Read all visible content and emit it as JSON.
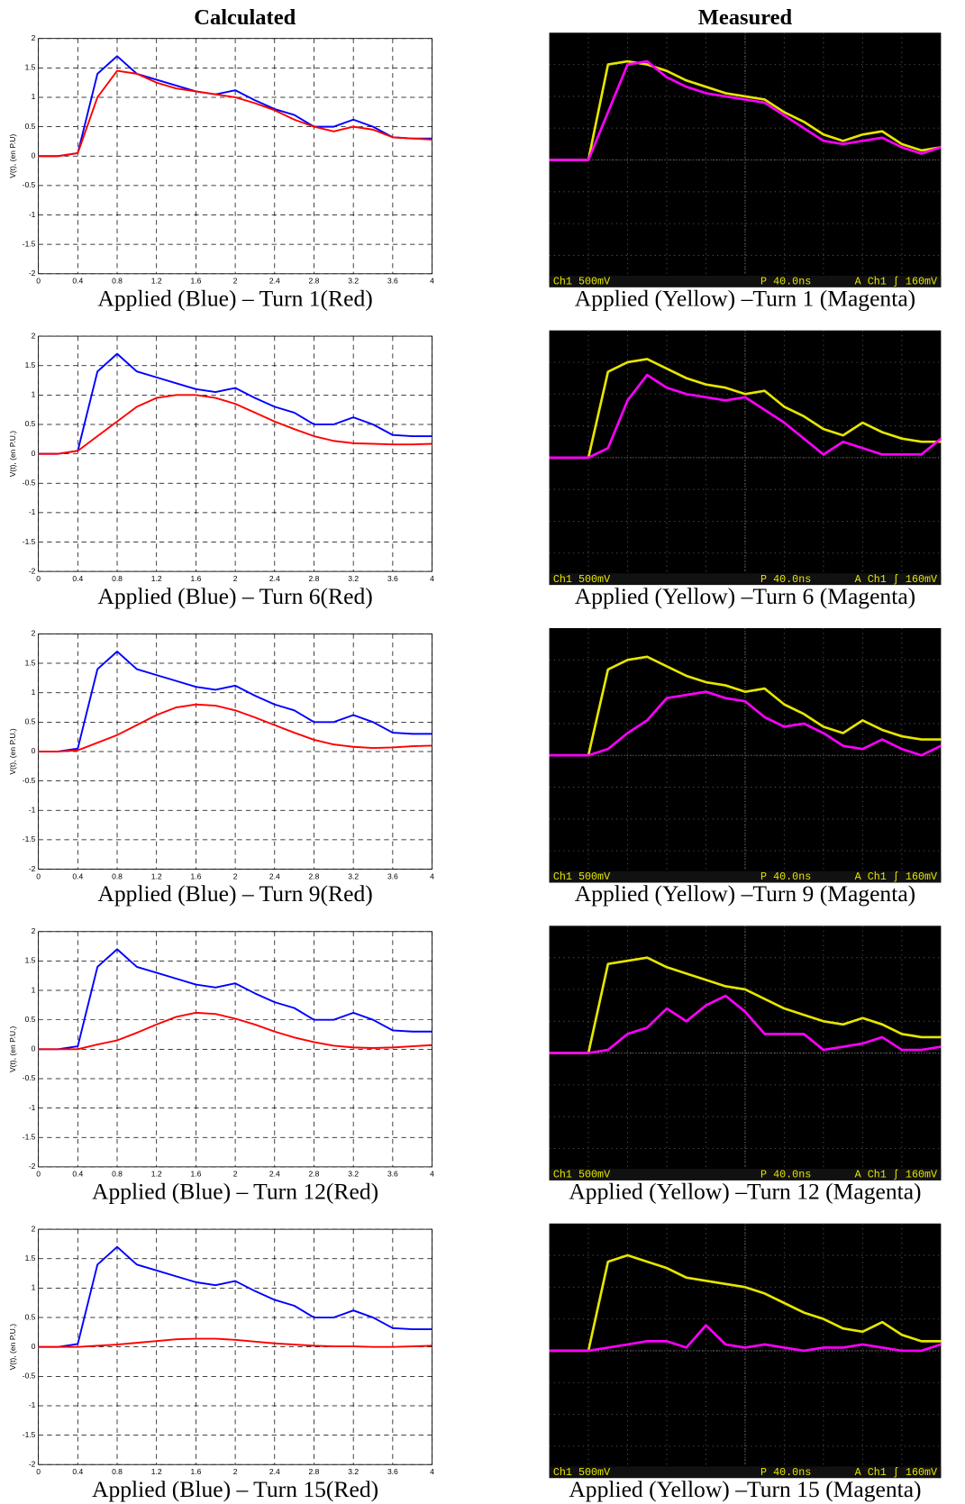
{
  "columns": {
    "calculated": "Calculated",
    "measured": "Measured"
  },
  "chart_data": [
    {
      "type": "line",
      "caption": "Applied (Blue) – Turn 1(Red)",
      "ylabel": "V(t), (en P.U)",
      "grid": true,
      "x": [
        0,
        0.2,
        0.4,
        0.6,
        0.8,
        1,
        1.2,
        1.4,
        1.6,
        1.8,
        2,
        2.2,
        2.4,
        2.6,
        2.8,
        3,
        3.2,
        3.4,
        3.6,
        3.8,
        4
      ],
      "series": [
        {
          "color": "#0000ff",
          "values": [
            0,
            0,
            0.05,
            1.4,
            1.7,
            1.4,
            1.3,
            1.2,
            1.1,
            1.05,
            1.12,
            0.95,
            0.8,
            0.7,
            0.5,
            0.5,
            0.62,
            0.5,
            0.32,
            0.3,
            0.3
          ]
        },
        {
          "color": "#ff0000",
          "values": [
            0,
            0,
            0.05,
            1.0,
            1.45,
            1.4,
            1.25,
            1.15,
            1.1,
            1.05,
            1.0,
            0.9,
            0.78,
            0.62,
            0.5,
            0.42,
            0.5,
            0.45,
            0.32,
            0.3,
            0.28
          ]
        }
      ],
      "xlim": [
        0,
        4
      ],
      "ylim": [
        -2,
        2
      ],
      "xticks": [
        0,
        0.4,
        0.8,
        1.2,
        1.6,
        2,
        2.4,
        2.8,
        3.2,
        3.6,
        4
      ],
      "yticks": [
        -2,
        -1.5,
        -1,
        -0.5,
        0,
        0.5,
        1,
        1.5,
        2
      ]
    },
    {
      "type": "line",
      "caption": "Applied (Yellow) –Turn 1 (Magenta)",
      "background": "#000000",
      "grid": true,
      "scale_readout": "Ch1  500mV",
      "time_readout": "P 40.0ns",
      "trigger_readout": "A  Ch1  ʃ  160mV",
      "x": [
        0,
        0.5,
        1,
        1.5,
        2,
        2.5,
        3,
        3.5,
        4,
        4.5,
        5,
        5.5,
        6,
        6.5,
        7,
        7.5,
        8,
        8.5,
        9,
        9.5,
        10
      ],
      "series": [
        {
          "color": "#e6e600",
          "values": [
            0,
            0,
            0,
            3.0,
            3.1,
            3.0,
            2.8,
            2.5,
            2.3,
            2.1,
            2.0,
            1.9,
            1.5,
            1.2,
            0.8,
            0.6,
            0.8,
            0.9,
            0.5,
            0.3,
            0.4
          ]
        },
        {
          "color": "#ff00ff",
          "values": [
            0,
            0,
            0,
            1.5,
            3.0,
            3.1,
            2.6,
            2.3,
            2.1,
            2.0,
            1.9,
            1.8,
            1.4,
            1.0,
            0.6,
            0.5,
            0.6,
            0.7,
            0.4,
            0.2,
            0.4
          ]
        }
      ],
      "xlim": [
        0,
        10
      ],
      "ylim": [
        -4,
        4
      ]
    },
    {
      "type": "line",
      "caption": "Applied (Blue) – Turn 6(Red)",
      "ylabel": "V(t), (en P.U.)",
      "grid": true,
      "x": [
        0,
        0.2,
        0.4,
        0.6,
        0.8,
        1,
        1.2,
        1.4,
        1.6,
        1.8,
        2,
        2.2,
        2.4,
        2.6,
        2.8,
        3,
        3.2,
        3.4,
        3.6,
        3.8,
        4
      ],
      "series": [
        {
          "color": "#0000ff",
          "values": [
            0,
            0,
            0.05,
            1.4,
            1.7,
            1.4,
            1.3,
            1.2,
            1.1,
            1.05,
            1.12,
            0.95,
            0.8,
            0.7,
            0.5,
            0.5,
            0.62,
            0.5,
            0.32,
            0.3,
            0.3
          ]
        },
        {
          "color": "#ff0000",
          "values": [
            0,
            0,
            0.05,
            0.3,
            0.55,
            0.8,
            0.95,
            1.0,
            1.0,
            0.95,
            0.85,
            0.7,
            0.55,
            0.42,
            0.3,
            0.22,
            0.18,
            0.17,
            0.16,
            0.16,
            0.17
          ]
        }
      ],
      "xlim": [
        0,
        4
      ],
      "ylim": [
        -2,
        2
      ],
      "xticks": [
        0,
        0.4,
        0.8,
        1.2,
        1.6,
        2,
        2.4,
        2.8,
        3.2,
        3.6,
        4
      ],
      "yticks": [
        -2,
        -1.5,
        -1,
        -0.5,
        0,
        0.5,
        1,
        1.5,
        2
      ]
    },
    {
      "type": "line",
      "caption": "Applied (Yellow) –Turn 6 (Magenta)",
      "background": "#000000",
      "grid": true,
      "scale_readout": "Ch1  500mV",
      "time_readout": "P 40.0ns",
      "trigger_readout": "A  Ch1  ʃ  160mV",
      "x": [
        0,
        0.5,
        1,
        1.5,
        2,
        2.5,
        3,
        3.5,
        4,
        4.5,
        5,
        5.5,
        6,
        6.5,
        7,
        7.5,
        8,
        8.5,
        9,
        9.5,
        10
      ],
      "series": [
        {
          "color": "#e6e600",
          "values": [
            0,
            0,
            0,
            2.7,
            3.0,
            3.1,
            2.8,
            2.5,
            2.3,
            2.2,
            2.0,
            2.1,
            1.6,
            1.3,
            0.9,
            0.7,
            1.1,
            0.8,
            0.6,
            0.5,
            0.5
          ]
        },
        {
          "color": "#ff00ff",
          "values": [
            0,
            0,
            0,
            0.3,
            1.8,
            2.6,
            2.2,
            2.0,
            1.9,
            1.8,
            1.9,
            1.5,
            1.1,
            0.6,
            0.1,
            0.5,
            0.3,
            0.1,
            0.1,
            0.1,
            0.6
          ]
        }
      ],
      "xlim": [
        0,
        10
      ],
      "ylim": [
        -4,
        4
      ]
    },
    {
      "type": "line",
      "caption": "Applied (Blue) – Turn 9(Red)",
      "ylabel": "V(t), (en P.U.)",
      "grid": true,
      "x": [
        0,
        0.2,
        0.4,
        0.6,
        0.8,
        1,
        1.2,
        1.4,
        1.6,
        1.8,
        2,
        2.2,
        2.4,
        2.6,
        2.8,
        3,
        3.2,
        3.4,
        3.6,
        3.8,
        4
      ],
      "series": [
        {
          "color": "#0000ff",
          "values": [
            0,
            0,
            0.05,
            1.4,
            1.7,
            1.4,
            1.3,
            1.2,
            1.1,
            1.05,
            1.12,
            0.95,
            0.8,
            0.7,
            0.5,
            0.5,
            0.62,
            0.5,
            0.32,
            0.3,
            0.3
          ]
        },
        {
          "color": "#ff0000",
          "values": [
            0,
            0,
            0.02,
            0.15,
            0.28,
            0.45,
            0.62,
            0.75,
            0.8,
            0.78,
            0.7,
            0.58,
            0.45,
            0.32,
            0.2,
            0.12,
            0.08,
            0.06,
            0.07,
            0.09,
            0.1
          ]
        }
      ],
      "xlim": [
        0,
        4
      ],
      "ylim": [
        -2,
        2
      ],
      "xticks": [
        0,
        0.4,
        0.8,
        1.2,
        1.6,
        2,
        2.4,
        2.8,
        3.2,
        3.6,
        4
      ],
      "yticks": [
        -2,
        -1.5,
        -1,
        -0.5,
        0,
        0.5,
        1,
        1.5,
        2
      ]
    },
    {
      "type": "line",
      "caption": "Applied (Yellow) –Turn 9 (Magenta)",
      "background": "#000000",
      "grid": true,
      "scale_readout": "Ch1  500mV",
      "time_readout": "P 40.0ns",
      "trigger_readout": "A  Ch1  ʃ  160mV",
      "x": [
        0,
        0.5,
        1,
        1.5,
        2,
        2.5,
        3,
        3.5,
        4,
        4.5,
        5,
        5.5,
        6,
        6.5,
        7,
        7.5,
        8,
        8.5,
        9,
        9.5,
        10
      ],
      "series": [
        {
          "color": "#e6e600",
          "values": [
            0,
            0,
            0,
            2.7,
            3.0,
            3.1,
            2.8,
            2.5,
            2.3,
            2.2,
            2.0,
            2.1,
            1.6,
            1.3,
            0.9,
            0.7,
            1.1,
            0.8,
            0.6,
            0.5,
            0.5
          ]
        },
        {
          "color": "#ff00ff",
          "values": [
            0,
            0,
            0,
            0.2,
            0.7,
            1.1,
            1.8,
            1.9,
            2.0,
            1.8,
            1.7,
            1.2,
            0.9,
            1.0,
            0.7,
            0.3,
            0.2,
            0.5,
            0.2,
            0.0,
            0.3
          ]
        }
      ],
      "xlim": [
        0,
        10
      ],
      "ylim": [
        -4,
        4
      ]
    },
    {
      "type": "line",
      "caption": "Applied (Blue) – Turn 12(Red)",
      "ylabel": "V(t), (en P.U.)",
      "grid": true,
      "x": [
        0,
        0.2,
        0.4,
        0.6,
        0.8,
        1,
        1.2,
        1.4,
        1.6,
        1.8,
        2,
        2.2,
        2.4,
        2.6,
        2.8,
        3,
        3.2,
        3.4,
        3.6,
        3.8,
        4
      ],
      "series": [
        {
          "color": "#0000ff",
          "values": [
            0,
            0,
            0.05,
            1.4,
            1.7,
            1.4,
            1.3,
            1.2,
            1.1,
            1.05,
            1.12,
            0.95,
            0.8,
            0.7,
            0.5,
            0.5,
            0.62,
            0.5,
            0.32,
            0.3,
            0.3
          ]
        },
        {
          "color": "#ff0000",
          "values": [
            0,
            0,
            0,
            0.08,
            0.15,
            0.28,
            0.42,
            0.55,
            0.62,
            0.6,
            0.52,
            0.42,
            0.3,
            0.2,
            0.12,
            0.06,
            0.03,
            0.02,
            0.03,
            0.05,
            0.07
          ]
        }
      ],
      "xlim": [
        0,
        4
      ],
      "ylim": [
        -2,
        2
      ],
      "xticks": [
        0,
        0.4,
        0.8,
        1.2,
        1.6,
        2,
        2.4,
        2.8,
        3.2,
        3.6,
        4
      ],
      "yticks": [
        -2,
        -1.5,
        -1,
        -0.5,
        0,
        0.5,
        1,
        1.5,
        2
      ]
    },
    {
      "type": "line",
      "caption": "Applied (Yellow) –Turn 12 (Magenta)",
      "background": "#000000",
      "grid": true,
      "scale_readout": "Ch1  500mV",
      "time_readout": "P 40.0ns",
      "trigger_readout": "A  Ch1  ʃ  160mV",
      "x": [
        0,
        0.5,
        1,
        1.5,
        2,
        2.5,
        3,
        3.5,
        4,
        4.5,
        5,
        5.5,
        6,
        6.5,
        7,
        7.5,
        8,
        8.5,
        9,
        9.5,
        10
      ],
      "series": [
        {
          "color": "#e6e600",
          "values": [
            0,
            0,
            0,
            2.8,
            2.9,
            3.0,
            2.7,
            2.5,
            2.3,
            2.1,
            2.0,
            1.7,
            1.4,
            1.2,
            1.0,
            0.9,
            1.1,
            0.9,
            0.6,
            0.5,
            0.5
          ]
        },
        {
          "color": "#ff00ff",
          "values": [
            0,
            0,
            0,
            0.1,
            0.6,
            0.8,
            1.4,
            1.0,
            1.5,
            1.8,
            1.3,
            0.6,
            0.6,
            0.6,
            0.1,
            0.2,
            0.3,
            0.5,
            0.1,
            0.1,
            0.2
          ]
        }
      ],
      "xlim": [
        0,
        10
      ],
      "ylim": [
        -4,
        4
      ]
    },
    {
      "type": "line",
      "caption": "Applied (Blue) – Turn 15(Red)",
      "ylabel": "V(t), (en P.U.)",
      "grid": true,
      "x": [
        0,
        0.2,
        0.4,
        0.6,
        0.8,
        1,
        1.2,
        1.4,
        1.6,
        1.8,
        2,
        2.2,
        2.4,
        2.6,
        2.8,
        3,
        3.2,
        3.4,
        3.6,
        3.8,
        4
      ],
      "series": [
        {
          "color": "#0000ff",
          "values": [
            0,
            0,
            0.05,
            1.4,
            1.7,
            1.4,
            1.3,
            1.2,
            1.1,
            1.05,
            1.12,
            0.95,
            0.8,
            0.7,
            0.5,
            0.5,
            0.62,
            0.5,
            0.32,
            0.3,
            0.3
          ]
        },
        {
          "color": "#ff0000",
          "values": [
            0,
            0,
            0,
            0.02,
            0.04,
            0.07,
            0.1,
            0.13,
            0.14,
            0.14,
            0.12,
            0.09,
            0.06,
            0.04,
            0.02,
            0.01,
            0.01,
            0,
            0,
            0.01,
            0.02
          ]
        }
      ],
      "xlim": [
        0,
        4
      ],
      "ylim": [
        -2,
        2
      ],
      "xticks": [
        0,
        0.4,
        0.8,
        1.2,
        1.6,
        2,
        2.4,
        2.8,
        3.2,
        3.6,
        4
      ],
      "yticks": [
        -2,
        -1.5,
        -1,
        -0.5,
        0,
        0.5,
        1,
        1.5,
        2
      ]
    },
    {
      "type": "line",
      "caption": "Applied (Yellow) –Turn 15 (Magenta)",
      "background": "#000000",
      "grid": true,
      "scale_readout": "Ch1  500mV",
      "time_readout": "P 40.0ns",
      "trigger_readout": "A  Ch1  ʃ  160mV",
      "x": [
        0,
        0.5,
        1,
        1.5,
        2,
        2.5,
        3,
        3.5,
        4,
        4.5,
        5,
        5.5,
        6,
        6.5,
        7,
        7.5,
        8,
        8.5,
        9,
        9.5,
        10
      ],
      "series": [
        {
          "color": "#e6e600",
          "values": [
            0,
            0,
            0,
            2.8,
            3.0,
            2.8,
            2.6,
            2.3,
            2.2,
            2.1,
            2.0,
            1.8,
            1.5,
            1.2,
            1.0,
            0.7,
            0.6,
            0.9,
            0.5,
            0.3,
            0.3
          ]
        },
        {
          "color": "#ff00ff",
          "values": [
            0,
            0,
            0,
            0.1,
            0.2,
            0.3,
            0.3,
            0.1,
            0.8,
            0.2,
            0.1,
            0.2,
            0.1,
            0.0,
            0.1,
            0.1,
            0.2,
            0.1,
            0.0,
            0.0,
            0.2
          ]
        }
      ],
      "xlim": [
        0,
        10
      ],
      "ylim": [
        -4,
        4
      ]
    }
  ]
}
